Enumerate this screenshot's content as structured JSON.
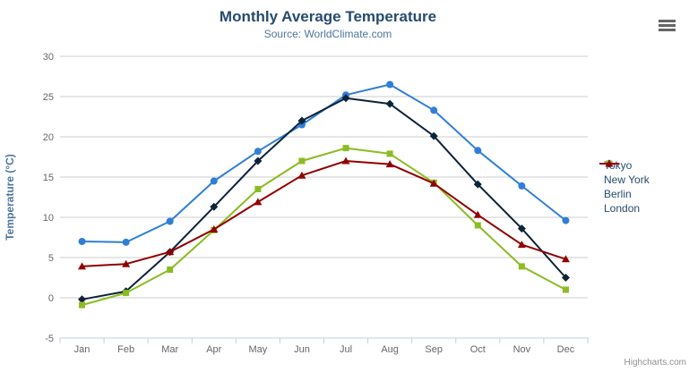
{
  "chart_data": {
    "type": "line",
    "title": "Monthly Average Temperature",
    "subtitle": "Source: WorldClimate.com",
    "categories": [
      "Jan",
      "Feb",
      "Mar",
      "Apr",
      "May",
      "Jun",
      "Jul",
      "Aug",
      "Sep",
      "Oct",
      "Nov",
      "Dec"
    ],
    "series": [
      {
        "name": "Tokyo",
        "color": "#2f7ed8",
        "marker": "circle",
        "values": [
          7.0,
          6.9,
          9.5,
          14.5,
          18.2,
          21.5,
          25.2,
          26.5,
          23.3,
          18.3,
          13.9,
          9.6
        ]
      },
      {
        "name": "New York",
        "color": "#0d233a",
        "marker": "diamond",
        "values": [
          -0.2,
          0.8,
          5.7,
          11.3,
          17.0,
          22.0,
          24.8,
          24.1,
          20.1,
          14.1,
          8.6,
          2.5
        ]
      },
      {
        "name": "Berlin",
        "color": "#8bbc21",
        "marker": "square",
        "values": [
          -0.9,
          0.6,
          3.5,
          8.4,
          13.5,
          17.0,
          18.6,
          17.9,
          14.3,
          9.0,
          3.9,
          1.0
        ]
      },
      {
        "name": "London",
        "color": "#910000",
        "marker": "triangle",
        "values": [
          3.9,
          4.2,
          5.7,
          8.5,
          11.9,
          15.2,
          17.0,
          16.6,
          14.2,
          10.3,
          6.6,
          4.8
        ]
      }
    ],
    "xlabel": "",
    "ylabel": "Temperature (°C)",
    "ylim": [
      -5,
      30
    ],
    "ytick_step": 5,
    "grid": true,
    "legend_position": "right",
    "colors": {
      "grid_line": "#cccccc",
      "axis_line": "#c0d0e0",
      "tick_label": "#666666",
      "title_text": "#274b6d",
      "subtitle_text": "#4d759e",
      "axis_title_text": "#4d759e",
      "legend_text": "#274b6d"
    }
  },
  "export_menu": {
    "icon": "hamburger"
  },
  "credits": {
    "label": "Highcharts.com"
  }
}
